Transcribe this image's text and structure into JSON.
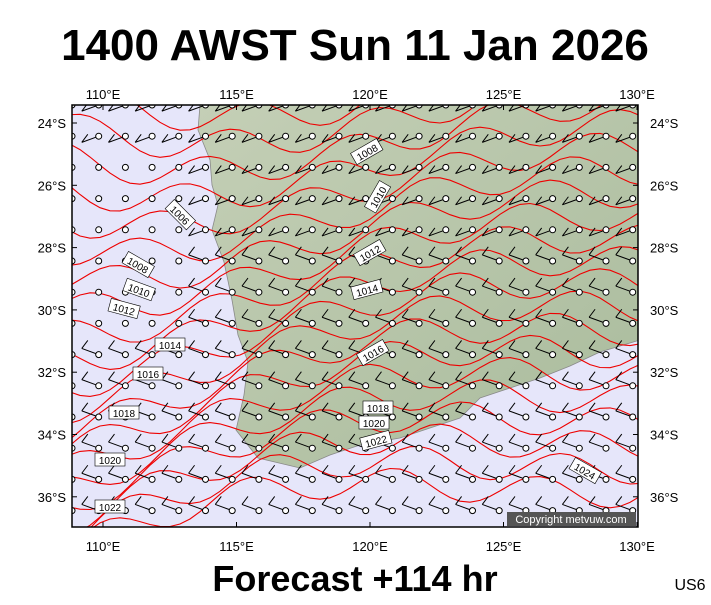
{
  "header": {
    "title": "1400 AWST Sun 11 Jan 2026"
  },
  "map": {
    "lon_labels": [
      "110°E",
      "115°E",
      "120°E",
      "125°E",
      "130°E"
    ],
    "lat_labels": [
      "24°S",
      "26°S",
      "28°S",
      "30°S",
      "32°S",
      "34°S",
      "36°S"
    ],
    "isobar_labels": [
      "1008",
      "1010",
      "1012",
      "1014",
      "1016",
      "1018",
      "1020",
      "1022",
      "1024",
      "1006",
      "1008",
      "1010",
      "1012",
      "1014",
      "1016",
      "1018",
      "1020",
      "1022"
    ],
    "copyright": "Copyright metvuw.com"
  },
  "footer": {
    "forecast": "Forecast +114 hr",
    "code": "US6"
  }
}
